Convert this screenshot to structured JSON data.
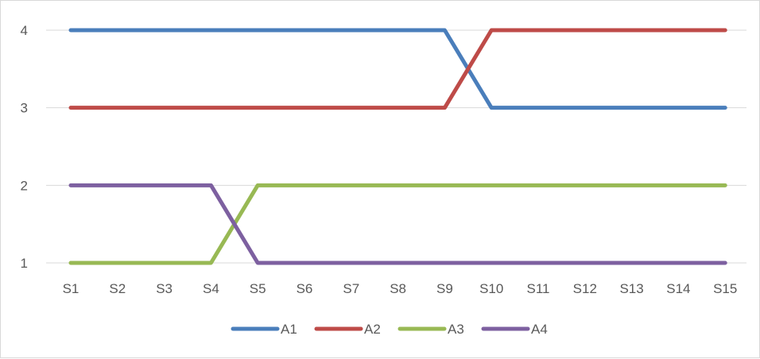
{
  "chart_data": {
    "type": "line",
    "categories": [
      "S1",
      "S2",
      "S3",
      "S4",
      "S5",
      "S6",
      "S7",
      "S8",
      "S9",
      "S10",
      "S11",
      "S12",
      "S13",
      "S14",
      "S15"
    ],
    "ylim": [
      1,
      4
    ],
    "yticks": [
      1,
      2,
      3,
      4
    ],
    "grid": true,
    "legend_position": "bottom",
    "series": [
      {
        "name": "A1",
        "color": "#4a7ebb",
        "values": [
          4,
          4,
          4,
          4,
          4,
          4,
          4,
          4,
          4,
          3,
          3,
          3,
          3,
          3,
          3
        ]
      },
      {
        "name": "A2",
        "color": "#be4b48",
        "values": [
          3,
          3,
          3,
          3,
          3,
          3,
          3,
          3,
          3,
          4,
          4,
          4,
          4,
          4,
          4
        ]
      },
      {
        "name": "A3",
        "color": "#98b954",
        "values": [
          1,
          1,
          1,
          1,
          2,
          2,
          2,
          2,
          2,
          2,
          2,
          2,
          2,
          2,
          2
        ]
      },
      {
        "name": "A4",
        "color": "#7d60a0",
        "values": [
          2,
          2,
          2,
          2,
          1,
          1,
          1,
          1,
          1,
          1,
          1,
          1,
          1,
          1,
          1
        ]
      }
    ]
  }
}
